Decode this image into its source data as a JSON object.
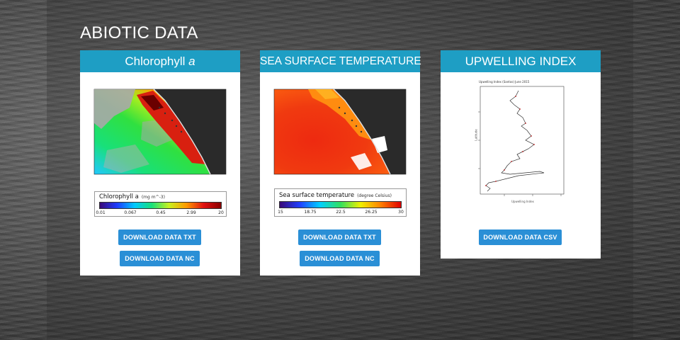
{
  "section": {
    "title": "ABIOTIC DATA"
  },
  "cards": {
    "chlorophyll": {
      "title": "Chlorophyll",
      "title_italic": "a",
      "colorbar": {
        "label": "Chlorophyll a",
        "unit": "(mg m^-3)",
        "ticks": [
          "0.01",
          "0.067",
          "0.45",
          "2.99",
          "20"
        ]
      },
      "buttons": {
        "txt": "DOWNLOAD DATA TXT",
        "nc": "DOWNLOAD DATA NC"
      }
    },
    "sst": {
      "title": "SEA SURFACE TEMPERATURE",
      "colorbar": {
        "label": "Sea surface temperature",
        "unit": "(degree Celsius)",
        "ticks": [
          "15",
          "18.75",
          "22.5",
          "26.25",
          "30"
        ]
      },
      "buttons": {
        "txt": "DOWNLOAD DATA TXT",
        "nc": "DOWNLOAD DATA NC"
      }
    },
    "upwelling": {
      "title": "UPWELLING INDEX",
      "chart_title": "Upwelling Index (Santos) June 2015",
      "xlabel": "Upwelling Index",
      "ylabel": "Latitude",
      "buttons": {
        "csv": "DOWNLOAD DATA CSV"
      }
    }
  },
  "colors": {
    "header": "#1e9ec4",
    "button": "#2a8fd6",
    "chlorophyll_scale": [
      "#3a0a78",
      "#1e3cff",
      "#00c8ff",
      "#18e07a",
      "#c8f020",
      "#ff9a00",
      "#e01010",
      "#8a0000"
    ],
    "sst_scale": [
      "#3a0a78",
      "#2040ff",
      "#00d0ff",
      "#30e060",
      "#f0f000",
      "#ff8000",
      "#e00000"
    ]
  }
}
